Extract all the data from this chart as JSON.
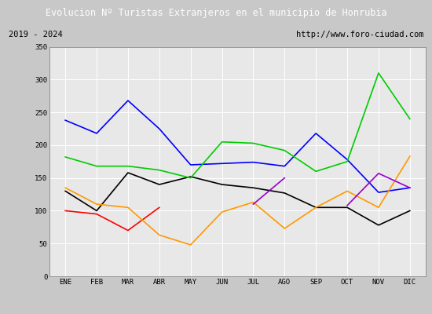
{
  "title": "Evolucion Nº Turistas Extranjeros en el municipio de Honrubia",
  "subtitle_left": "2019 - 2024",
  "subtitle_right": "http://www.foro-ciudad.com",
  "x_labels": [
    "ENE",
    "FEB",
    "MAR",
    "ABR",
    "MAY",
    "JUN",
    "JUL",
    "AGO",
    "SEP",
    "OCT",
    "NOV",
    "DIC"
  ],
  "ylim": [
    0,
    350
  ],
  "yticks": [
    0,
    50,
    100,
    150,
    200,
    250,
    300,
    350
  ],
  "series": {
    "2024": {
      "color": "#ff0000",
      "data": [
        100,
        95,
        70,
        105,
        null,
        null,
        null,
        null,
        null,
        null,
        null,
        null
      ]
    },
    "2023": {
      "color": "#000000",
      "data": [
        130,
        100,
        158,
        140,
        152,
        140,
        135,
        127,
        105,
        105,
        78,
        100
      ]
    },
    "2022": {
      "color": "#0000ff",
      "data": [
        238,
        218,
        268,
        225,
        170,
        172,
        174,
        168,
        218,
        178,
        128,
        135
      ]
    },
    "2021": {
      "color": "#00cc00",
      "data": [
        182,
        168,
        168,
        162,
        150,
        205,
        203,
        192,
        160,
        175,
        310,
        240
      ]
    },
    "2020": {
      "color": "#ff9900",
      "data": [
        135,
        110,
        105,
        63,
        48,
        98,
        113,
        73,
        105,
        130,
        105,
        183
      ]
    },
    "2019": {
      "color": "#9900cc",
      "data": [
        null,
        null,
        null,
        null,
        null,
        null,
        110,
        150,
        null,
        108,
        157,
        135
      ]
    }
  },
  "title_bg_color": "#3f8fbf",
  "title_text_color": "#ffffff",
  "subtitle_bg_color": "#e0e0e0",
  "plot_bg_color": "#e8e8e8",
  "grid_color": "#ffffff",
  "legend_bg_color": "#f2f2f2",
  "outer_bg_color": "#c8c8c8"
}
